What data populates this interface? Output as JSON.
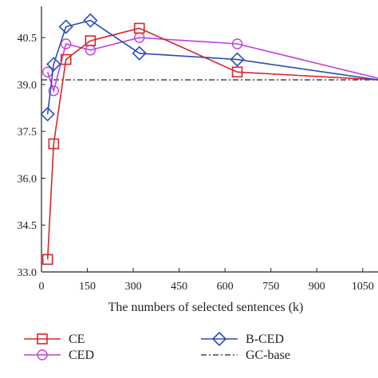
{
  "chart_data": {
    "type": "line",
    "title": "",
    "xlabel": "The numbers of selected sentences (k)",
    "ylabel": "",
    "xlim": [
      0,
      1100
    ],
    "ylim": [
      33.0,
      41.5
    ],
    "xticks": [
      0,
      150,
      300,
      450,
      600,
      750,
      900,
      1050
    ],
    "yticks": [
      33.0,
      34.5,
      36.0,
      37.5,
      39.0,
      40.5
    ],
    "ytick_labels": [
      "33.0",
      "34.5",
      "36.0",
      "37.5",
      "39.0",
      "40.5"
    ],
    "grid": false,
    "legend_position": "bottom",
    "series": [
      {
        "name": "CE",
        "color": "#d62728",
        "marker": "square",
        "x": [
          20,
          40,
          80,
          160,
          320,
          640,
          1100
        ],
        "y": [
          33.4,
          37.1,
          39.8,
          40.4,
          40.8,
          39.4,
          39.15
        ]
      },
      {
        "name": "CED",
        "color": "#c040e0",
        "marker": "circle",
        "x": [
          20,
          40,
          80,
          160,
          320,
          640,
          1100
        ],
        "y": [
          39.4,
          38.8,
          40.3,
          40.1,
          40.5,
          40.3,
          39.2
        ]
      },
      {
        "name": "B-CED",
        "color": "#2a4db8",
        "marker": "diamond",
        "x": [
          20,
          40,
          80,
          160,
          320,
          640,
          1100
        ],
        "y": [
          38.05,
          39.65,
          40.85,
          41.05,
          40.0,
          39.8,
          39.15
        ]
      },
      {
        "name": "GC-base",
        "color": "#222222",
        "marker": "none",
        "dash": "dashdot",
        "x": [
          0,
          1100
        ],
        "y": [
          39.15,
          39.15
        ]
      }
    ]
  }
}
